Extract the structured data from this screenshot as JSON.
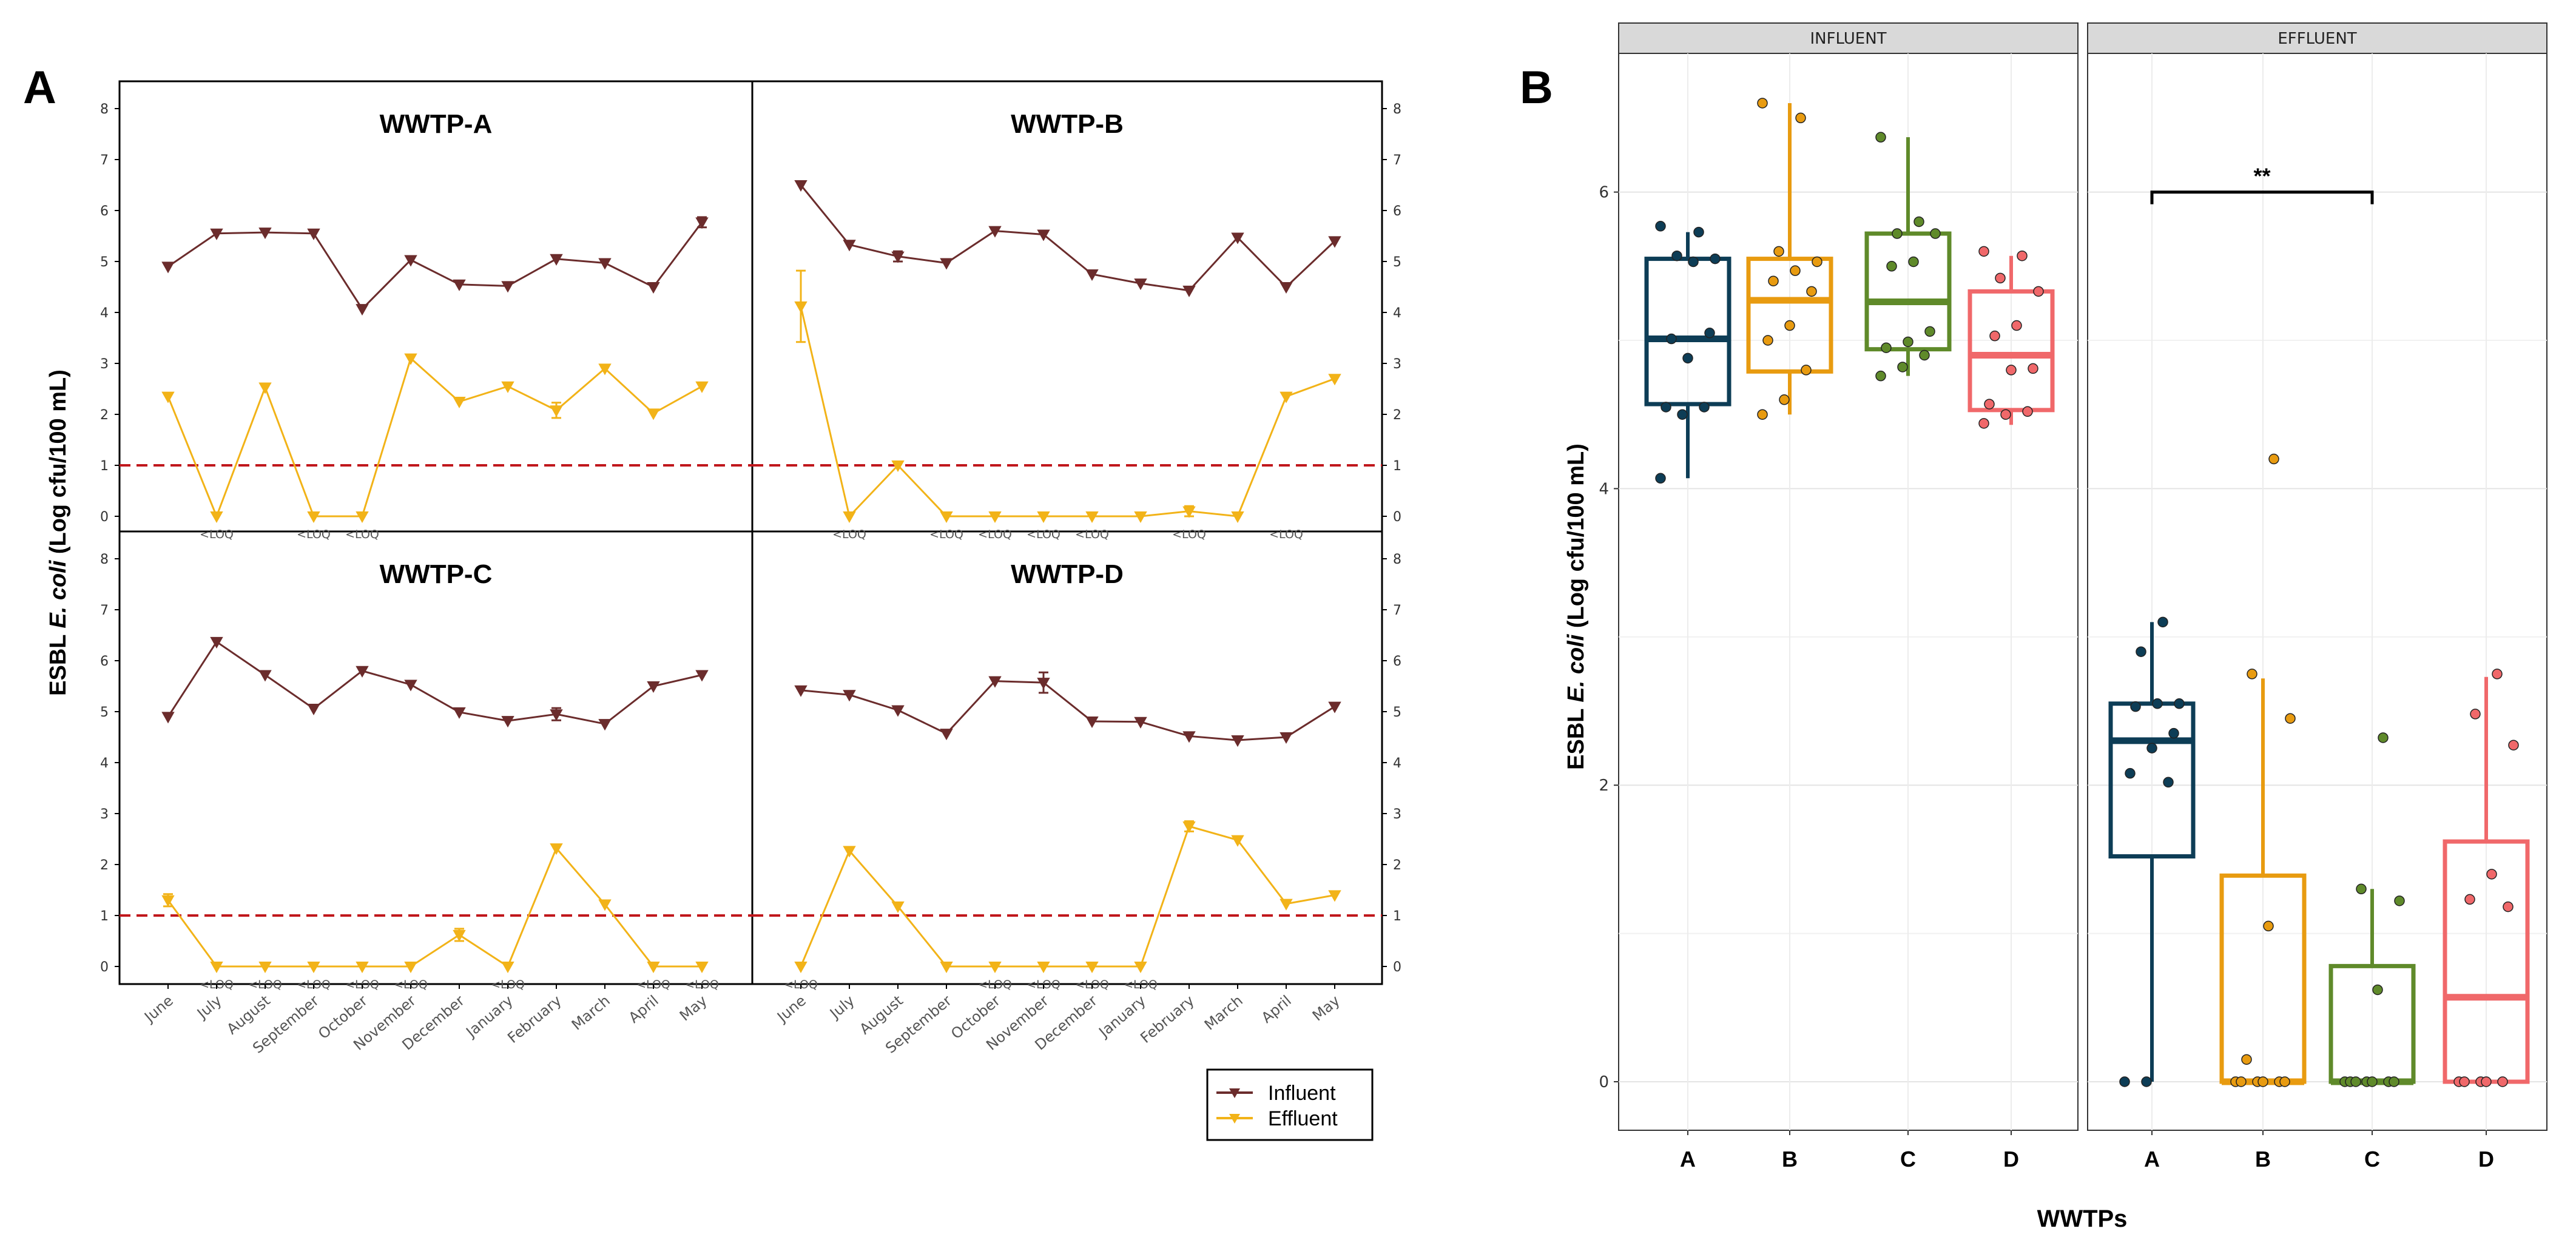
{
  "chart_data": [
    {
      "panel": "A",
      "type": "line",
      "ylabel_parts": [
        "ESBL ",
        "E. coli",
        " (Log cfu/100 mL)"
      ],
      "categories": [
        "June",
        "July",
        "August",
        "September",
        "October",
        "November",
        "December",
        "January",
        "February",
        "March",
        "April",
        "May"
      ],
      "ylim": [
        0,
        8
      ],
      "yticks": [
        "0",
        "1",
        "2",
        "3",
        "4",
        "5",
        "6",
        "7",
        "8"
      ],
      "loq_level": 1,
      "loq_label": "<LOQ",
      "colors": {
        "influent": "#6b2c2c",
        "effluent": "#f2b318",
        "loq_line": "#c0171c"
      },
      "legend": {
        "position": "bottom-right",
        "influent": "Influent",
        "effluent": "Effluent"
      },
      "subplots": [
        {
          "title": "WWTP-A",
          "influent": [
            4.9,
            5.55,
            5.57,
            5.55,
            4.07,
            5.03,
            4.55,
            4.52,
            5.05,
            4.97,
            4.5,
            5.77
          ],
          "effluent": [
            2.35,
            0,
            2.53,
            0,
            0,
            3.1,
            2.25,
            2.55,
            2.08,
            2.9,
            2.02,
            2.55
          ],
          "effluent_err": [
            0,
            0,
            0,
            0,
            0,
            0,
            0,
            0,
            0.15,
            0,
            0,
            0
          ],
          "influent_err": [
            0,
            0,
            0,
            0,
            0,
            0,
            0,
            0,
            0,
            0,
            0,
            0.1
          ],
          "loq": [
            1,
            3,
            4
          ]
        },
        {
          "title": "WWTP-B",
          "influent": [
            6.5,
            5.33,
            5.1,
            4.97,
            5.6,
            5.53,
            4.75,
            4.57,
            4.43,
            5.47,
            4.5,
            5.4
          ],
          "effluent": [
            4.12,
            0,
            1.0,
            0,
            0,
            0,
            0,
            0,
            0.1,
            0,
            2.35,
            2.7
          ],
          "effluent_err": [
            0.7,
            0,
            0,
            0,
            0,
            0,
            0,
            0,
            0.1,
            0,
            0,
            0
          ],
          "influent_err": [
            0,
            0,
            0.1,
            0,
            0,
            0,
            0,
            0,
            0,
            0,
            0,
            0
          ],
          "loq": [
            1,
            3,
            4,
            5,
            6,
            8,
            10
          ]
        },
        {
          "title": "WWTP-C",
          "influent": [
            4.9,
            6.37,
            5.72,
            5.06,
            5.8,
            5.53,
            4.99,
            4.82,
            4.95,
            4.76,
            5.5,
            5.72
          ],
          "effluent": [
            1.3,
            0,
            0,
            0,
            0,
            0,
            0.62,
            0,
            2.32,
            1.22,
            0,
            0
          ],
          "effluent_err": [
            0.12,
            0,
            0,
            0,
            0,
            0,
            0.12,
            0,
            0,
            0,
            0,
            0
          ],
          "influent_err": [
            0,
            0,
            0,
            0,
            0,
            0,
            0,
            0,
            0.12,
            0,
            0,
            0
          ],
          "loq": [
            1,
            2,
            3,
            4,
            5,
            7,
            10,
            11
          ]
        },
        {
          "title": "WWTP-D",
          "influent": [
            5.42,
            5.33,
            5.03,
            4.57,
            5.6,
            5.57,
            4.81,
            4.8,
            4.52,
            4.44,
            4.5,
            5.1
          ],
          "effluent": [
            0,
            2.27,
            1.18,
            0,
            0,
            0,
            0,
            0,
            2.75,
            2.48,
            1.23,
            1.4
          ],
          "effluent_err": [
            0,
            0,
            0,
            0,
            0,
            0,
            0,
            0,
            0.1,
            0,
            0,
            0
          ],
          "influent_err": [
            0,
            0,
            0,
            0,
            0,
            0.2,
            0,
            0,
            0,
            0,
            0,
            0
          ],
          "loq": [
            0,
            4,
            5,
            6,
            7
          ]
        }
      ]
    },
    {
      "panel": "B",
      "type": "box",
      "ylabel_parts": [
        "ESBL ",
        "E. coli",
        " (Log cfu/100 mL)"
      ],
      "xlabel": "WWTPs",
      "categories": [
        "A",
        "B",
        "C",
        "D"
      ],
      "facets": [
        "INFLUENT",
        "EFFLUENT"
      ],
      "ylim": [
        -0.35,
        6.95
      ],
      "yticks": [
        "0",
        "2",
        "4",
        "6"
      ],
      "colors": {
        "A": "#0d3d56",
        "B": "#e89b10",
        "C": "#5f8a2a",
        "D": "#f0686a"
      },
      "significance": {
        "facet": "EFFLUENT",
        "from": "A",
        "to": "C",
        "label": "**",
        "y": 6.0
      },
      "boxes": {
        "INFLUENT": [
          {
            "cat": "A",
            "q1": 4.57,
            "median": 5.01,
            "q3": 5.55,
            "low": 4.07,
            "high": 5.73
          },
          {
            "cat": "B",
            "q1": 4.79,
            "median": 5.27,
            "q3": 5.55,
            "low": 4.5,
            "high": 6.6
          },
          {
            "cat": "C",
            "q1": 4.94,
            "median": 5.26,
            "q3": 5.72,
            "low": 4.76,
            "high": 6.37
          },
          {
            "cat": "D",
            "q1": 4.53,
            "median": 4.9,
            "q3": 5.33,
            "low": 4.43,
            "high": 5.57
          }
        ],
        "EFFLUENT": [
          {
            "cat": "A",
            "q1": 1.52,
            "median": 2.3,
            "q3": 2.55,
            "low": 0,
            "high": 3.1
          },
          {
            "cat": "B",
            "q1": 0,
            "median": 0,
            "q3": 1.39,
            "low": 0,
            "high": 2.72
          },
          {
            "cat": "C",
            "q1": 0,
            "median": 0,
            "q3": 0.78,
            "low": 0,
            "high": 1.3
          },
          {
            "cat": "D",
            "q1": 0,
            "median": 0.57,
            "q3": 1.62,
            "low": 0,
            "high": 2.73
          }
        ]
      },
      "points": {
        "INFLUENT": {
          "A": [
            4.07,
            4.5,
            4.55,
            4.55,
            4.88,
            5.05,
            5.01,
            5.53,
            5.55,
            5.57,
            5.73,
            5.77
          ],
          "B": [
            4.5,
            4.6,
            4.8,
            5.0,
            5.1,
            5.33,
            5.4,
            5.47,
            5.53,
            5.6,
            6.5,
            6.6
          ],
          "C": [
            4.76,
            4.82,
            4.9,
            4.95,
            4.99,
            5.06,
            5.5,
            5.53,
            5.72,
            5.72,
            5.8,
            6.37
          ],
          "D": [
            4.44,
            4.5,
            4.52,
            4.57,
            4.8,
            4.81,
            5.03,
            5.1,
            5.33,
            5.42,
            5.57,
            5.6
          ]
        },
        "EFFLUENT": {
          "A": [
            0,
            0,
            2.02,
            2.08,
            2.25,
            2.35,
            2.53,
            2.55,
            2.55,
            2.9,
            3.1
          ],
          "B": [
            0,
            0,
            0,
            0,
            0,
            0,
            0.15,
            1.05,
            2.45,
            2.75,
            4.2
          ],
          "C": [
            0,
            0,
            0,
            0,
            0,
            0,
            0,
            0.62,
            1.22,
            1.3,
            2.32
          ],
          "D": [
            0,
            0,
            0,
            0,
            0,
            1.18,
            1.23,
            1.4,
            2.27,
            2.48,
            2.75
          ]
        }
      }
    }
  ]
}
